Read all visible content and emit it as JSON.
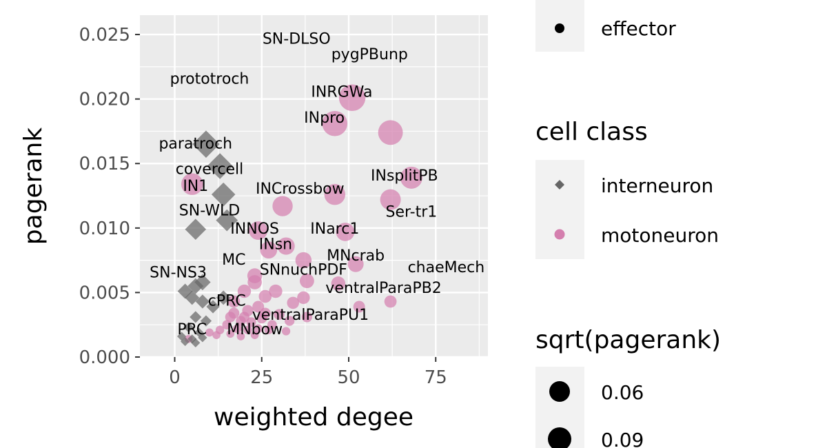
{
  "chart_data": {
    "type": "scatter",
    "xlabel": "weighted degee",
    "ylabel": "pagerank",
    "xlim": [
      -10,
      90
    ],
    "ylim": [
      0,
      0.0265
    ],
    "x_ticks": [
      0,
      25,
      50,
      75
    ],
    "x_tick_labels": [
      "0",
      "25",
      "50",
      "75"
    ],
    "y_ticks": [
      0,
      0.005,
      0.01,
      0.015,
      0.02,
      0.025
    ],
    "y_tick_labels": [
      "0.000",
      "0.005",
      "0.010",
      "0.015",
      "0.020",
      "0.025"
    ],
    "grid": true,
    "colors": {
      "interneuron": "#666666",
      "motoneuron": "#d47fae",
      "panel_bg": "#ebebeb",
      "grid": "#ffffff"
    },
    "points": [
      {
        "x": 9,
        "y": 0.0165,
        "class": "interneuron"
      },
      {
        "x": 13,
        "y": 0.0148,
        "class": "interneuron"
      },
      {
        "x": 14,
        "y": 0.0126,
        "class": "interneuron"
      },
      {
        "x": 15,
        "y": 0.0106,
        "class": "interneuron"
      },
      {
        "x": 6,
        "y": 0.0099,
        "class": "interneuron"
      },
      {
        "x": 3,
        "y": 0.0051,
        "class": "interneuron"
      },
      {
        "x": 6,
        "y": 0.0055,
        "class": "interneuron"
      },
      {
        "x": 8,
        "y": 0.0058,
        "class": "interneuron"
      },
      {
        "x": 5,
        "y": 0.0046,
        "class": "interneuron"
      },
      {
        "x": 8,
        "y": 0.0043,
        "class": "interneuron"
      },
      {
        "x": 11,
        "y": 0.0039,
        "class": "interneuron"
      },
      {
        "x": 14,
        "y": 0.0046,
        "class": "interneuron"
      },
      {
        "x": 6,
        "y": 0.0031,
        "class": "interneuron"
      },
      {
        "x": 9,
        "y": 0.0028,
        "class": "interneuron"
      },
      {
        "x": 4,
        "y": 0.0023,
        "class": "interneuron"
      },
      {
        "x": 7,
        "y": 0.0019,
        "class": "interneuron"
      },
      {
        "x": 2,
        "y": 0.0016,
        "class": "interneuron"
      },
      {
        "x": 5,
        "y": 0.0014,
        "class": "interneuron"
      },
      {
        "x": 3,
        "y": 0.0012,
        "class": "interneuron"
      },
      {
        "x": 6,
        "y": 0.0011,
        "class": "interneuron"
      },
      {
        "x": 8,
        "y": 0.0015,
        "class": "interneuron"
      },
      {
        "x": 51,
        "y": 0.0201,
        "class": "motoneuron"
      },
      {
        "x": 46,
        "y": 0.0181,
        "class": "motoneuron"
      },
      {
        "x": 62,
        "y": 0.0174,
        "class": "motoneuron"
      },
      {
        "x": 68,
        "y": 0.0139,
        "class": "motoneuron"
      },
      {
        "x": 62,
        "y": 0.0122,
        "class": "motoneuron"
      },
      {
        "x": 46,
        "y": 0.0126,
        "class": "motoneuron"
      },
      {
        "x": 31,
        "y": 0.0117,
        "class": "motoneuron"
      },
      {
        "x": 5,
        "y": 0.0134,
        "class": "motoneuron"
      },
      {
        "x": 49,
        "y": 0.0097,
        "class": "motoneuron"
      },
      {
        "x": 24,
        "y": 0.0098,
        "class": "motoneuron"
      },
      {
        "x": 27,
        "y": 0.0083,
        "class": "motoneuron"
      },
      {
        "x": 32,
        "y": 0.0086,
        "class": "motoneuron"
      },
      {
        "x": 37,
        "y": 0.0075,
        "class": "motoneuron"
      },
      {
        "x": 52,
        "y": 0.0072,
        "class": "motoneuron"
      },
      {
        "x": 23,
        "y": 0.0063,
        "class": "motoneuron"
      },
      {
        "x": 38,
        "y": 0.0059,
        "class": "motoneuron"
      },
      {
        "x": 47,
        "y": 0.0057,
        "class": "motoneuron"
      },
      {
        "x": 29,
        "y": 0.0051,
        "class": "motoneuron"
      },
      {
        "x": 37,
        "y": 0.0046,
        "class": "motoneuron"
      },
      {
        "x": 62,
        "y": 0.0043,
        "class": "motoneuron"
      },
      {
        "x": 53,
        "y": 0.0039,
        "class": "motoneuron"
      },
      {
        "x": 34,
        "y": 0.0042,
        "class": "motoneuron"
      },
      {
        "x": 26,
        "y": 0.0047,
        "class": "motoneuron"
      },
      {
        "x": 20,
        "y": 0.0051,
        "class": "motoneuron"
      },
      {
        "x": 17,
        "y": 0.0043,
        "class": "motoneuron"
      },
      {
        "x": 21,
        "y": 0.0036,
        "class": "motoneuron"
      },
      {
        "x": 24,
        "y": 0.0039,
        "class": "motoneuron"
      },
      {
        "x": 30,
        "y": 0.0033,
        "class": "motoneuron"
      },
      {
        "x": 16,
        "y": 0.0031,
        "class": "motoneuron"
      },
      {
        "x": 19,
        "y": 0.0028,
        "class": "motoneuron"
      },
      {
        "x": 22,
        "y": 0.0027,
        "class": "motoneuron"
      },
      {
        "x": 25,
        "y": 0.003,
        "class": "motoneuron"
      },
      {
        "x": 28,
        "y": 0.0025,
        "class": "motoneuron"
      },
      {
        "x": 33,
        "y": 0.0028,
        "class": "motoneuron"
      },
      {
        "x": 38,
        "y": 0.0031,
        "class": "motoneuron"
      },
      {
        "x": 18,
        "y": 0.0022,
        "class": "motoneuron"
      },
      {
        "x": 21,
        "y": 0.0021,
        "class": "motoneuron"
      },
      {
        "x": 24,
        "y": 0.0022,
        "class": "motoneuron"
      },
      {
        "x": 27,
        "y": 0.0021,
        "class": "motoneuron"
      },
      {
        "x": 32,
        "y": 0.002,
        "class": "motoneuron"
      },
      {
        "x": 16,
        "y": 0.0018,
        "class": "motoneuron"
      },
      {
        "x": 19,
        "y": 0.0016,
        "class": "motoneuron"
      },
      {
        "x": 23,
        "y": 0.0017,
        "class": "motoneuron"
      },
      {
        "x": 13,
        "y": 0.0021,
        "class": "motoneuron"
      },
      {
        "x": 15,
        "y": 0.0025,
        "class": "motoneuron"
      },
      {
        "x": 12,
        "y": 0.0017,
        "class": "motoneuron"
      },
      {
        "x": 10,
        "y": 0.0019,
        "class": "motoneuron"
      },
      {
        "x": 20,
        "y": 0.0031,
        "class": "motoneuron"
      },
      {
        "x": 26,
        "y": 0.0034,
        "class": "motoneuron"
      },
      {
        "x": 23,
        "y": 0.0058,
        "class": "motoneuron"
      },
      {
        "x": 17,
        "y": 0.0034,
        "class": "motoneuron"
      },
      {
        "x": 4,
        "y": 0.0014,
        "class": "motoneuron"
      }
    ],
    "labels": [
      {
        "text": "SN-DLSO",
        "x": 35,
        "y": 0.0247
      },
      {
        "text": "pygPBunp",
        "x": 56,
        "y": 0.0235
      },
      {
        "text": "prototroch",
        "x": 10,
        "y": 0.0216
      },
      {
        "text": "INRGWa",
        "x": 48,
        "y": 0.0206
      },
      {
        "text": "INpro",
        "x": 43,
        "y": 0.0186
      },
      {
        "text": "paratroch",
        "x": 6,
        "y": 0.0166
      },
      {
        "text": "covercell",
        "x": 10,
        "y": 0.0146
      },
      {
        "text": "INsplitPB",
        "x": 66,
        "y": 0.0141
      },
      {
        "text": "IN1",
        "x": 6,
        "y": 0.0133
      },
      {
        "text": "INCrossbow",
        "x": 36,
        "y": 0.0131
      },
      {
        "text": "SN-WLD",
        "x": 10,
        "y": 0.0114
      },
      {
        "text": "Ser-tr1",
        "x": 68,
        "y": 0.0113
      },
      {
        "text": "INNOS",
        "x": 23,
        "y": 0.01
      },
      {
        "text": "INarc1",
        "x": 46,
        "y": 0.01
      },
      {
        "text": "INsn",
        "x": 29,
        "y": 0.0088
      },
      {
        "text": "MNcrab",
        "x": 52,
        "y": 0.0079
      },
      {
        "text": "MC",
        "x": 17,
        "y": 0.0076
      },
      {
        "text": "chaeMech",
        "x": 78,
        "y": 0.007
      },
      {
        "text": "SNnuchPDF",
        "x": 37,
        "y": 0.0068
      },
      {
        "text": "SN-NS3",
        "x": 1,
        "y": 0.0066
      },
      {
        "text": "ventralParaPB2",
        "x": 60,
        "y": 0.0054
      },
      {
        "text": "cPRC",
        "x": 15,
        "y": 0.0044
      },
      {
        "text": "ventralParaPU1",
        "x": 39,
        "y": 0.0033
      },
      {
        "text": "MNbow",
        "x": 23,
        "y": 0.0022
      },
      {
        "text": "PRC",
        "x": 5,
        "y": 0.0022
      }
    ]
  },
  "legend": {
    "top_entry": {
      "label": "effector"
    },
    "cell_class": {
      "title": "cell class",
      "entries": [
        {
          "label": "interneuron",
          "shape": "diamond"
        },
        {
          "label": "motoneuron",
          "shape": "circle"
        }
      ]
    },
    "size": {
      "title": "sqrt(pagerank)",
      "entries": [
        {
          "label": "0.06"
        },
        {
          "label": "0.09"
        }
      ]
    }
  }
}
